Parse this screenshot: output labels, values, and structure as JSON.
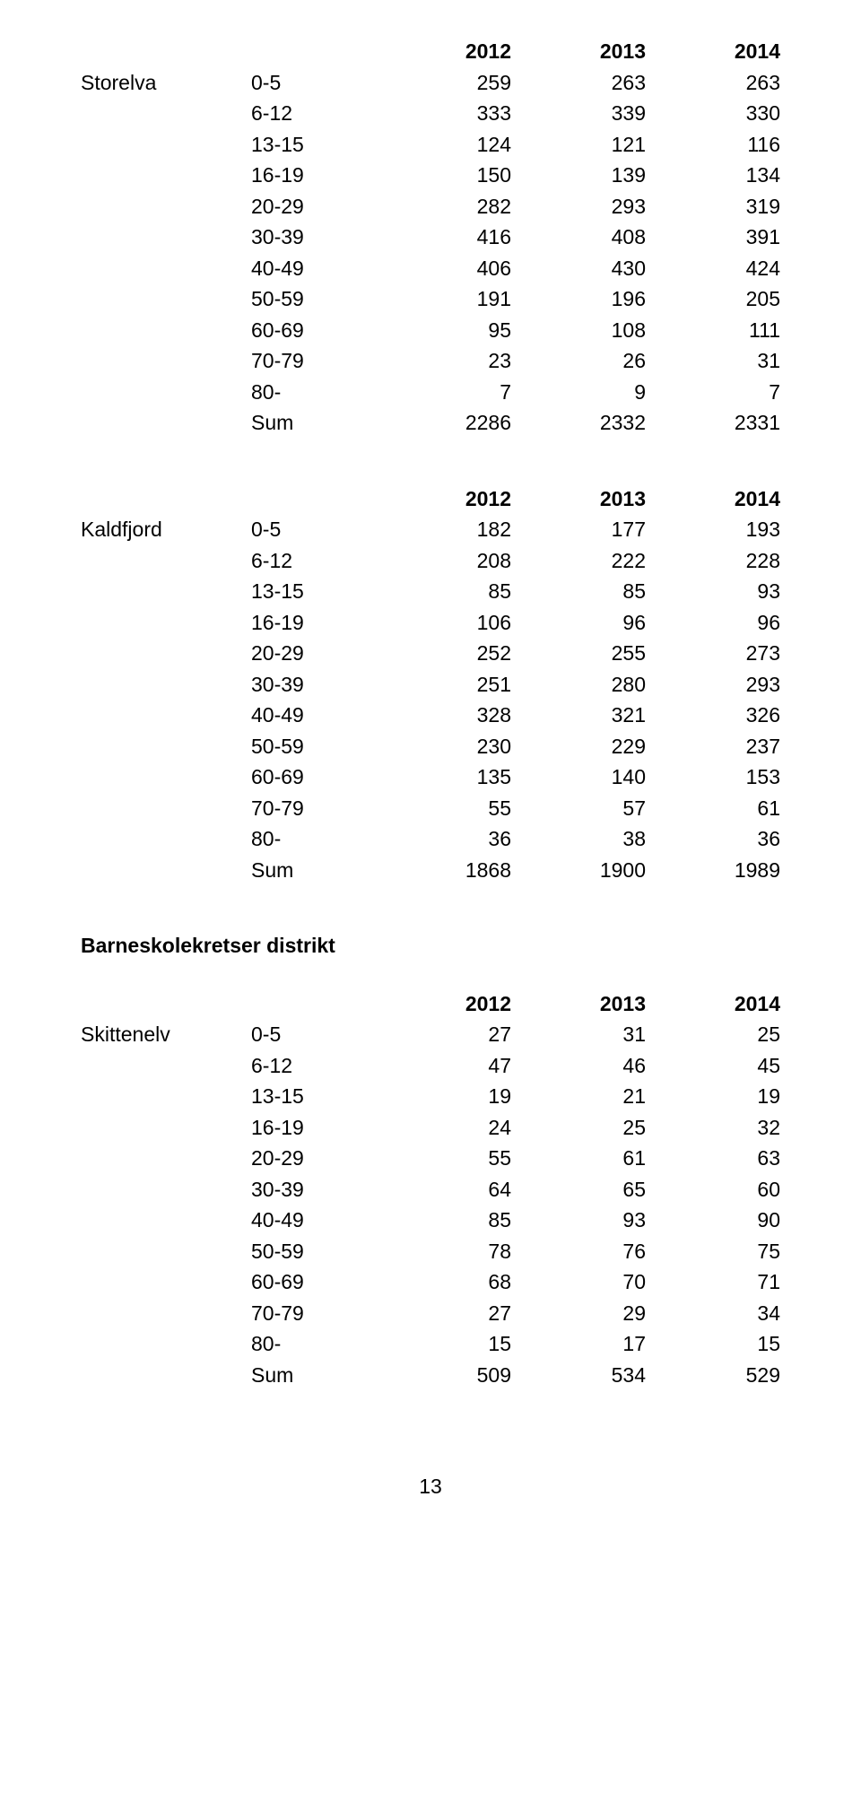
{
  "year_headers": [
    "2012",
    "2013",
    "2014"
  ],
  "section_title": "Barneskolekretser distrikt",
  "page_number": "13",
  "blocks": [
    {
      "label": "Storelva",
      "rows": [
        {
          "age": "0-5",
          "v": [
            "259",
            "263",
            "263"
          ]
        },
        {
          "age": "6-12",
          "v": [
            "333",
            "339",
            "330"
          ]
        },
        {
          "age": "13-15",
          "v": [
            "124",
            "121",
            "116"
          ]
        },
        {
          "age": "16-19",
          "v": [
            "150",
            "139",
            "134"
          ]
        },
        {
          "age": "20-29",
          "v": [
            "282",
            "293",
            "319"
          ]
        },
        {
          "age": "30-39",
          "v": [
            "416",
            "408",
            "391"
          ]
        },
        {
          "age": "40-49",
          "v": [
            "406",
            "430",
            "424"
          ]
        },
        {
          "age": "50-59",
          "v": [
            "191",
            "196",
            "205"
          ]
        },
        {
          "age": "60-69",
          "v": [
            "95",
            "108",
            "111"
          ]
        },
        {
          "age": "70-79",
          "v": [
            "23",
            "26",
            "31"
          ]
        },
        {
          "age": "80-",
          "v": [
            "7",
            "9",
            "7"
          ]
        },
        {
          "age": "Sum",
          "v": [
            "2286",
            "2332",
            "2331"
          ]
        }
      ]
    },
    {
      "label": "Kaldfjord",
      "rows": [
        {
          "age": "0-5",
          "v": [
            "182",
            "177",
            "193"
          ]
        },
        {
          "age": "6-12",
          "v": [
            "208",
            "222",
            "228"
          ]
        },
        {
          "age": "13-15",
          "v": [
            "85",
            "85",
            "93"
          ]
        },
        {
          "age": "16-19",
          "v": [
            "106",
            "96",
            "96"
          ]
        },
        {
          "age": "20-29",
          "v": [
            "252",
            "255",
            "273"
          ]
        },
        {
          "age": "30-39",
          "v": [
            "251",
            "280",
            "293"
          ]
        },
        {
          "age": "40-49",
          "v": [
            "328",
            "321",
            "326"
          ]
        },
        {
          "age": "50-59",
          "v": [
            "230",
            "229",
            "237"
          ]
        },
        {
          "age": "60-69",
          "v": [
            "135",
            "140",
            "153"
          ]
        },
        {
          "age": "70-79",
          "v": [
            "55",
            "57",
            "61"
          ]
        },
        {
          "age": "80-",
          "v": [
            "36",
            "38",
            "36"
          ]
        },
        {
          "age": "Sum",
          "v": [
            "1868",
            "1900",
            "1989"
          ]
        }
      ]
    },
    {
      "label": "Skittenelv",
      "rows": [
        {
          "age": "0-5",
          "v": [
            "27",
            "31",
            "25"
          ]
        },
        {
          "age": "6-12",
          "v": [
            "47",
            "46",
            "45"
          ]
        },
        {
          "age": "13-15",
          "v": [
            "19",
            "21",
            "19"
          ]
        },
        {
          "age": "16-19",
          "v": [
            "24",
            "25",
            "32"
          ]
        },
        {
          "age": "20-29",
          "v": [
            "55",
            "61",
            "63"
          ]
        },
        {
          "age": "30-39",
          "v": [
            "64",
            "65",
            "60"
          ]
        },
        {
          "age": "40-49",
          "v": [
            "85",
            "93",
            "90"
          ]
        },
        {
          "age": "50-59",
          "v": [
            "78",
            "76",
            "75"
          ]
        },
        {
          "age": "60-69",
          "v": [
            "68",
            "70",
            "71"
          ]
        },
        {
          "age": "70-79",
          "v": [
            "27",
            "29",
            "34"
          ]
        },
        {
          "age": "80-",
          "v": [
            "15",
            "17",
            "15"
          ]
        },
        {
          "age": "Sum",
          "v": [
            "509",
            "534",
            "529"
          ]
        }
      ]
    }
  ]
}
